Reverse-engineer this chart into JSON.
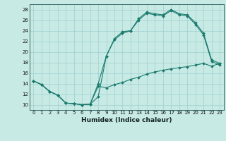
{
  "xlabel": "Humidex (Indice chaleur)",
  "background_color": "#c8eae4",
  "grid_color": "#9fcfcf",
  "line_color": "#1a7a6e",
  "xlim": [
    -0.5,
    23.5
  ],
  "ylim": [
    9,
    29
  ],
  "xticks": [
    0,
    1,
    2,
    3,
    4,
    5,
    6,
    7,
    8,
    9,
    10,
    11,
    12,
    13,
    14,
    15,
    16,
    17,
    18,
    19,
    20,
    21,
    22,
    23
  ],
  "yticks": [
    10,
    12,
    14,
    16,
    18,
    20,
    22,
    24,
    26,
    28
  ],
  "line1_x": [
    0,
    1,
    2,
    3,
    4,
    5,
    6,
    7,
    8,
    9,
    10,
    11,
    12,
    13,
    14,
    15,
    16,
    17,
    18,
    19,
    20,
    21,
    22,
    23
  ],
  "line1_y": [
    14.5,
    13.8,
    12.5,
    11.8,
    10.3,
    10.2,
    10.0,
    10.1,
    14.0,
    19.2,
    22.5,
    23.8,
    24.0,
    26.3,
    27.5,
    27.2,
    27.0,
    28.0,
    27.2,
    27.0,
    25.5,
    23.5,
    18.5,
    17.8
  ],
  "line2_x": [
    0,
    1,
    2,
    3,
    4,
    5,
    6,
    7,
    8,
    9,
    10,
    11,
    12,
    13,
    14,
    15,
    16,
    17,
    18,
    19,
    20,
    21,
    22,
    23
  ],
  "line2_y": [
    14.5,
    13.8,
    12.5,
    11.8,
    10.3,
    10.2,
    10.0,
    10.1,
    13.5,
    13.2,
    13.8,
    14.2,
    14.8,
    15.2,
    15.8,
    16.2,
    16.5,
    16.8,
    17.0,
    17.2,
    17.5,
    17.8,
    17.3,
    17.8
  ],
  "line3_x": [
    0,
    1,
    2,
    3,
    4,
    5,
    6,
    7,
    8,
    9,
    10,
    11,
    12,
    13,
    14,
    15,
    16,
    17,
    18,
    19,
    20,
    21,
    22,
    23
  ],
  "line3_y": [
    14.5,
    13.8,
    12.5,
    11.8,
    10.3,
    10.2,
    10.0,
    10.1,
    11.5,
    19.2,
    22.3,
    23.5,
    24.0,
    26.0,
    27.3,
    27.0,
    26.8,
    27.8,
    27.0,
    26.8,
    25.2,
    23.2,
    18.2,
    17.5
  ]
}
